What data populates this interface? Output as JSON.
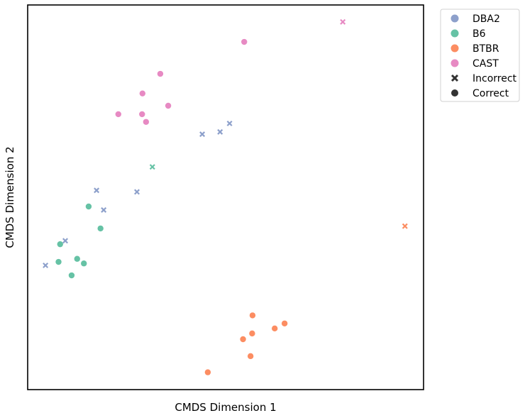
{
  "chart_data": {
    "type": "scatter",
    "title": "",
    "xlabel": "CMDS Dimension 1",
    "ylabel": "CMDS Dimension 2",
    "xlim": [
      0,
      100
    ],
    "ylim": [
      0,
      100
    ],
    "grid": false,
    "ticks_visible": false,
    "legend_position": "outside-top-right",
    "groups": [
      {
        "name": "DBA2",
        "color": "#8da0cb"
      },
      {
        "name": "B6",
        "color": "#66c2a5"
      },
      {
        "name": "BTBR",
        "color": "#fc8d62"
      },
      {
        "name": "CAST",
        "color": "#e78ac3"
      }
    ],
    "markers": [
      {
        "name": "Incorrect",
        "symbol": "x"
      },
      {
        "name": "Correct",
        "symbol": "circle"
      }
    ],
    "points": [
      {
        "group": "CAST",
        "status": "Incorrect",
        "x": 79.6,
        "y": 95.6
      },
      {
        "group": "CAST",
        "status": "Correct",
        "x": 54.7,
        "y": 90.4
      },
      {
        "group": "CAST",
        "status": "Correct",
        "x": 33.5,
        "y": 82.1
      },
      {
        "group": "CAST",
        "status": "Correct",
        "x": 29.0,
        "y": 77.0
      },
      {
        "group": "CAST",
        "status": "Correct",
        "x": 35.5,
        "y": 73.8
      },
      {
        "group": "CAST",
        "status": "Correct",
        "x": 22.9,
        "y": 71.6
      },
      {
        "group": "CAST",
        "status": "Correct",
        "x": 28.9,
        "y": 71.6
      },
      {
        "group": "CAST",
        "status": "Correct",
        "x": 29.9,
        "y": 69.6
      },
      {
        "group": "DBA2",
        "status": "Incorrect",
        "x": 51.0,
        "y": 69.2
      },
      {
        "group": "DBA2",
        "status": "Incorrect",
        "x": 48.6,
        "y": 67.0
      },
      {
        "group": "DBA2",
        "status": "Incorrect",
        "x": 44.1,
        "y": 66.4
      },
      {
        "group": "B6",
        "status": "Incorrect",
        "x": 31.5,
        "y": 57.9
      },
      {
        "group": "DBA2",
        "status": "Incorrect",
        "x": 17.4,
        "y": 51.8
      },
      {
        "group": "DBA2",
        "status": "Incorrect",
        "x": 27.6,
        "y": 51.4
      },
      {
        "group": "B6",
        "status": "Correct",
        "x": 15.4,
        "y": 47.6
      },
      {
        "group": "DBA2",
        "status": "Incorrect",
        "x": 19.2,
        "y": 46.7
      },
      {
        "group": "BTBR",
        "status": "Incorrect",
        "x": 95.3,
        "y": 42.5
      },
      {
        "group": "B6",
        "status": "Correct",
        "x": 18.4,
        "y": 41.9
      },
      {
        "group": "DBA2",
        "status": "Incorrect",
        "x": 9.5,
        "y": 38.7
      },
      {
        "group": "B6",
        "status": "Correct",
        "x": 8.2,
        "y": 37.8
      },
      {
        "group": "B6",
        "status": "Correct",
        "x": 12.5,
        "y": 34.0
      },
      {
        "group": "B6",
        "status": "Correct",
        "x": 7.8,
        "y": 33.2
      },
      {
        "group": "B6",
        "status": "Correct",
        "x": 14.2,
        "y": 32.8
      },
      {
        "group": "DBA2",
        "status": "Incorrect",
        "x": 4.5,
        "y": 32.3
      },
      {
        "group": "B6",
        "status": "Correct",
        "x": 11.1,
        "y": 29.7
      },
      {
        "group": "BTBR",
        "status": "Correct",
        "x": 56.8,
        "y": 19.3
      },
      {
        "group": "BTBR",
        "status": "Correct",
        "x": 64.9,
        "y": 17.2
      },
      {
        "group": "BTBR",
        "status": "Correct",
        "x": 62.4,
        "y": 15.9
      },
      {
        "group": "BTBR",
        "status": "Correct",
        "x": 56.7,
        "y": 14.6
      },
      {
        "group": "BTBR",
        "status": "Correct",
        "x": 54.4,
        "y": 13.1
      },
      {
        "group": "BTBR",
        "status": "Correct",
        "x": 56.3,
        "y": 8.7
      },
      {
        "group": "BTBR",
        "status": "Correct",
        "x": 45.5,
        "y": 4.5
      }
    ]
  }
}
